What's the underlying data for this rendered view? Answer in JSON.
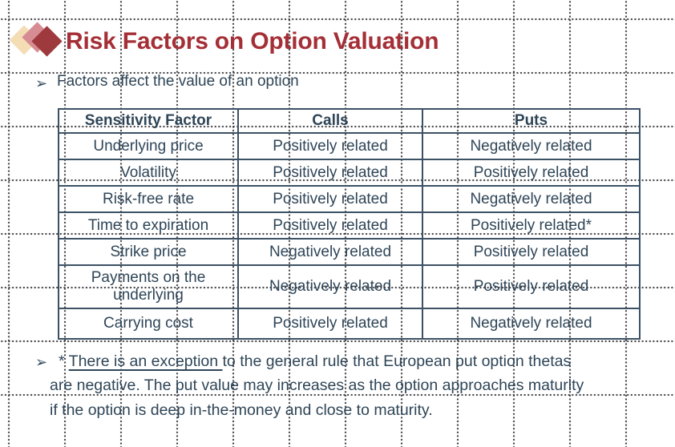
{
  "slide": {
    "title": "Risk Factors on Option Valuation",
    "bullet_glyph": "➢",
    "bullet1": "Factors affect the value of an option",
    "table": {
      "headers": [
        "Sensitivity Factor",
        "Calls",
        "Puts"
      ],
      "rows": [
        [
          "Underlying price",
          "Positively related",
          "Negatively related"
        ],
        [
          "Volatility",
          "Positively related",
          "Positively related"
        ],
        [
          "Risk-free rate",
          "Positively related",
          "Negatively related"
        ],
        [
          "Time to expiration",
          "Positively related",
          "Positively related*"
        ],
        [
          "Strike price",
          "Negatively related",
          "Positively related"
        ],
        [
          "Payments on the underlying",
          "Negatively related",
          "Positively related"
        ],
        [
          "Carrying cost",
          "Positively related",
          "Negatively related"
        ]
      ]
    },
    "note": {
      "line1_prefix": "* ",
      "line1_underlined": "There is an exception ",
      "line1_rest": "to the general rule that European put option thetas",
      "line2": "are negative. The put value may increases as the option approaches maturity",
      "line3": "if the option is deep in-the-money and close to maturity."
    },
    "colors": {
      "title_red": "#A42F36",
      "body_text": "#2E4557",
      "table_border": "#3C5164",
      "diamond_back": "#F4DCB5",
      "diamond_mid": "#D68C92",
      "diamond_front": "#9E393D"
    }
  }
}
